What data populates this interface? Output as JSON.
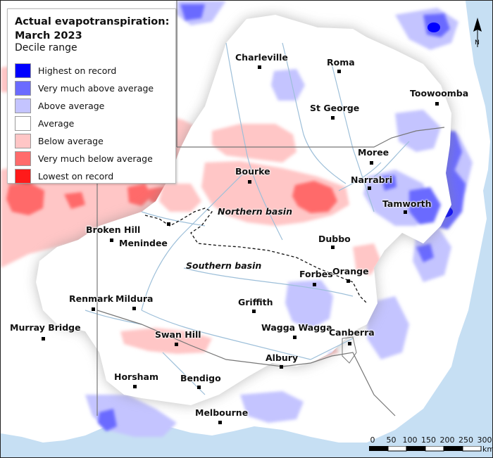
{
  "legend": {
    "title_line1": "Actual evapotranspiration:",
    "title_line2": "March 2023",
    "subtitle": "Decile range",
    "items": [
      {
        "label": "Highest on record",
        "color": "#0000ff"
      },
      {
        "label": "Very much above average",
        "color": "#6b6bff"
      },
      {
        "label": "Above average",
        "color": "#c4c4ff"
      },
      {
        "label": "Average",
        "color": "#ffffff"
      },
      {
        "label": "Below average",
        "color": "#ffc6c6"
      },
      {
        "label": "Very much below average",
        "color": "#ff6b6b"
      },
      {
        "label": "Lowest on record",
        "color": "#ff1a1a"
      }
    ]
  },
  "colors": {
    "ocean": "#c6dff3",
    "land": "#ffffff",
    "rivers": "#9dbfd9",
    "borders": "#777777"
  },
  "towns": [
    {
      "id": "charleville",
      "label": "Charleville"
    },
    {
      "id": "roma",
      "label": "Roma"
    },
    {
      "id": "toowoomba",
      "label": "Toowoomba"
    },
    {
      "id": "st-george",
      "label": "St George"
    },
    {
      "id": "moree",
      "label": "Moree"
    },
    {
      "id": "bourke",
      "label": "Bourke"
    },
    {
      "id": "narrabri",
      "label": "Narrabri"
    },
    {
      "id": "tamworth",
      "label": "Tamworth"
    },
    {
      "id": "broken-hill",
      "label": "Broken Hill"
    },
    {
      "id": "menindee",
      "label": "Menindee"
    },
    {
      "id": "dubbo",
      "label": "Dubbo"
    },
    {
      "id": "forbes",
      "label": "Forbes"
    },
    {
      "id": "orange",
      "label": "Orange"
    },
    {
      "id": "renmark",
      "label": "Renmark"
    },
    {
      "id": "mildura",
      "label": "Mildura"
    },
    {
      "id": "griffith",
      "label": "Griffith"
    },
    {
      "id": "murray-bridge",
      "label": "Murray Bridge"
    },
    {
      "id": "swan-hill",
      "label": "Swan Hill"
    },
    {
      "id": "wagga-wagga",
      "label": "Wagga Wagga"
    },
    {
      "id": "canberra",
      "label": "Canberra"
    },
    {
      "id": "albury",
      "label": "Albury"
    },
    {
      "id": "horsham",
      "label": "Horsham"
    },
    {
      "id": "bendigo",
      "label": "Bendigo"
    },
    {
      "id": "melbourne",
      "label": "Melbourne"
    }
  ],
  "basins": {
    "northern": "Northern basin",
    "southern": "Southern basin"
  },
  "north_arrow": {
    "label": "N"
  },
  "scale_bar": {
    "ticks": [
      "0",
      "50",
      "100",
      "150",
      "200",
      "250",
      "300"
    ],
    "unit": "km"
  }
}
